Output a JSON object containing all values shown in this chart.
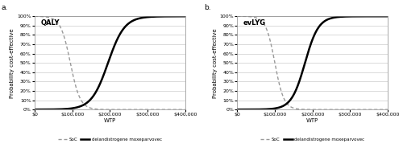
{
  "panel_a": {
    "title": "QALY",
    "soc_midpoint": 95000,
    "soc_scale": 13000,
    "drug_midpoint": 195000,
    "drug_scale": 22000
  },
  "panel_b": {
    "title": "evLYG",
    "soc_midpoint": 100000,
    "soc_scale": 12000,
    "drug_midpoint": 180000,
    "drug_scale": 18000
  },
  "x_min": 0,
  "x_max": 400000,
  "y_min": 0,
  "y_max": 1.0,
  "yticks": [
    0.0,
    0.1,
    0.2,
    0.3,
    0.4,
    0.5,
    0.6,
    0.7,
    0.8,
    0.9,
    1.0
  ],
  "xticks": [
    0,
    100000,
    200000,
    300000,
    400000
  ],
  "xlabel": "WTP",
  "ylabel": "Probability cost-effective",
  "soc_color": "#999999",
  "drug_color": "#000000",
  "soc_label": "SoC",
  "drug_label": "delandistrogene moxeparvovec",
  "background_color": "#ffffff",
  "grid_color": "#cccccc",
  "panel_label_a": "a.",
  "panel_label_b": "b.",
  "fig_width": 5.0,
  "fig_height": 1.84,
  "dpi": 100
}
